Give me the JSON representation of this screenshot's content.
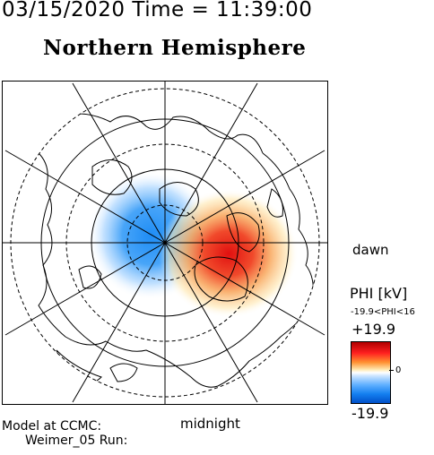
{
  "header": {
    "date_time": "03/15/2020 Time = 11:39:00"
  },
  "map": {
    "title": "Northern Hemisphere",
    "projection": "polar stereographic, north pole at center",
    "dawn_label": "dawn",
    "midnight_label": "midnight",
    "grid": "latitude circles every 10 degrees, meridians every 30 degrees",
    "potential_cells": [
      {
        "sign": "negative",
        "side": "dusk (left of pole)",
        "color": "#1e8cf5"
      },
      {
        "sign": "positive",
        "side": "dawn (right of pole, toward midnight)",
        "color": "#e01010"
      }
    ]
  },
  "model": {
    "line1": "Model at CCMC:",
    "line2": "Weimer_05 Run:"
  },
  "colorbar": {
    "label": "PHI [kV]",
    "range_text": "-19.9<PHI<16",
    "max_label": "+19.9",
    "zero_label": "0",
    "min_label": "-19.9",
    "max_color": "#b00000",
    "min_color": "#0050c8"
  }
}
